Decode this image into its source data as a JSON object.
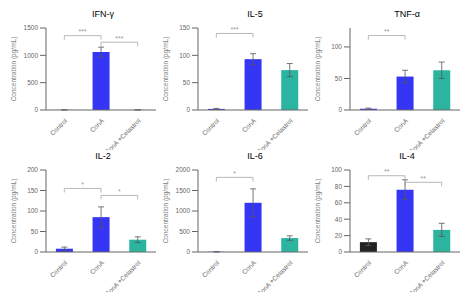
{
  "chart_data": [
    {
      "type": "bar",
      "title": "IFN-γ",
      "categories": [
        "Control",
        "ConA",
        "ConA +Celastrol"
      ],
      "values": [
        2,
        1060,
        2
      ],
      "errors": [
        1,
        90,
        1
      ],
      "colors": [
        "#3535f5",
        "#3535f5",
        "#3535f5"
      ],
      "ylabel": "Concentration (pg/mL)",
      "ylim": [
        0,
        1500
      ],
      "yticks": [
        0,
        500,
        1000,
        1500
      ],
      "annotations": [
        {
          "from": "Control",
          "to": "ConA",
          "y": 1360,
          "label": "***",
          "color": "#999999"
        },
        {
          "from": "ConA",
          "to": "ConA +Celastrol",
          "y": 1240,
          "label": "***",
          "color": "#999999"
        }
      ]
    },
    {
      "type": "bar",
      "title": "IL-5",
      "categories": [
        "Control",
        "ConA",
        "ConA +Celastrol"
      ],
      "values": [
        2,
        93,
        73
      ],
      "errors": [
        1,
        10,
        12
      ],
      "colors": [
        "#3535f5",
        "#3535f5",
        "#2bb5a0"
      ],
      "ylabel": "Concentration (pg/mL)",
      "ylim": [
        0,
        150
      ],
      "yticks": [
        0,
        50,
        100,
        150
      ],
      "annotations": [
        {
          "from": "Control",
          "to": "ConA",
          "y": 140,
          "label": "***",
          "color": "#999999"
        }
      ]
    },
    {
      "type": "bar",
      "title": "TNF-α",
      "categories": [
        "Control",
        "ConA",
        "ConA +Celastrol"
      ],
      "values": [
        2,
        53,
        63
      ],
      "errors": [
        1,
        10,
        13
      ],
      "colors": [
        "#3535f5",
        "#3535f5",
        "#2bb5a0"
      ],
      "ylabel": "Concentration (pg/mL)",
      "ylim": [
        0,
        130
      ],
      "yticks": [
        0,
        50,
        100
      ],
      "annotations": [
        {
          "from": "Control",
          "to": "ConA",
          "y": 118,
          "label": "**",
          "color": "#999999"
        }
      ]
    },
    {
      "type": "bar",
      "title": "IL-2",
      "categories": [
        "Control",
        "ConA",
        "ConA +Celastrol"
      ],
      "values": [
        8,
        85,
        30
      ],
      "errors": [
        4,
        25,
        7
      ],
      "colors": [
        "#3535f5",
        "#3535f5",
        "#2bb5a0"
      ],
      "ylabel": "Concentration (pg/mL)",
      "ylim": [
        0,
        200
      ],
      "yticks": [
        0,
        50,
        100,
        150,
        200
      ],
      "annotations": [
        {
          "from": "Control",
          "to": "ConA",
          "y": 155,
          "label": "*",
          "color": "#999999"
        },
        {
          "from": "ConA",
          "to": "ConA +Celastrol",
          "y": 138,
          "label": "*",
          "color": "#999999"
        }
      ]
    },
    {
      "type": "bar",
      "title": "IL-6",
      "categories": [
        "Control",
        "ConA",
        "ConA +Celastrol"
      ],
      "values": [
        5,
        1200,
        340
      ],
      "errors": [
        3,
        340,
        55
      ],
      "colors": [
        "#3535f5",
        "#3535f5",
        "#2bb5a0"
      ],
      "ylabel": "Concentration (pg/mL)",
      "ylim": [
        0,
        2000
      ],
      "yticks": [
        0,
        500,
        1000,
        1500,
        2000
      ],
      "annotations": [
        {
          "from": "Control",
          "to": "ConA",
          "y": 1820,
          "label": "*",
          "color": "#999999"
        }
      ]
    },
    {
      "type": "bar",
      "title": "IL-4",
      "categories": [
        "Control",
        "ConA",
        "ConA +Celastrol"
      ],
      "values": [
        12,
        76,
        27
      ],
      "errors": [
        4,
        12,
        8
      ],
      "colors": [
        "#222222",
        "#3535f5",
        "#2bb5a0"
      ],
      "ylabel": "Concentration (pg/mL)",
      "ylim": [
        0,
        100
      ],
      "yticks": [
        0,
        20,
        40,
        60,
        80,
        100
      ],
      "annotations": [
        {
          "from": "Control",
          "to": "ConA",
          "y": 93,
          "label": "**",
          "color": "#999999"
        },
        {
          "from": "ConA",
          "to": "ConA +Celastrol",
          "y": 85,
          "label": "**",
          "color": "#999999"
        }
      ]
    }
  ]
}
